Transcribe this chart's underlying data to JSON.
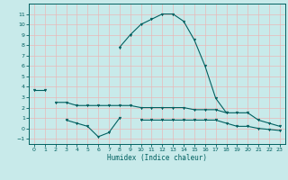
{
  "xlabel": "Humidex (Indice chaleur)",
  "x": [
    0,
    1,
    2,
    3,
    4,
    5,
    6,
    7,
    8,
    9,
    10,
    11,
    12,
    13,
    14,
    15,
    16,
    17,
    18,
    19,
    20,
    21,
    22,
    23
  ],
  "line1": [
    3.7,
    3.7,
    null,
    null,
    null,
    null,
    null,
    null,
    7.8,
    9.0,
    10.0,
    10.5,
    11.0,
    11.0,
    10.3,
    8.5,
    6.0,
    2.9,
    1.5,
    null,
    null,
    null,
    null,
    null
  ],
  "line2": [
    null,
    null,
    2.5,
    2.5,
    2.2,
    2.2,
    2.2,
    2.2,
    2.2,
    2.2,
    2.0,
    2.0,
    2.0,
    2.0,
    2.0,
    1.8,
    1.8,
    1.8,
    1.5,
    1.5,
    1.5,
    0.8,
    0.5,
    0.2
  ],
  "line3": [
    null,
    null,
    null,
    0.8,
    0.5,
    0.2,
    -0.8,
    -0.4,
    1.0,
    null,
    null,
    null,
    null,
    null,
    null,
    null,
    null,
    null,
    null,
    null,
    null,
    null,
    null,
    null
  ],
  "line4": [
    null,
    null,
    null,
    null,
    null,
    null,
    null,
    null,
    null,
    null,
    0.8,
    0.8,
    0.8,
    0.8,
    0.8,
    0.8,
    0.8,
    0.8,
    0.5,
    0.2,
    0.2,
    0.0,
    -0.1,
    -0.2
  ],
  "line_color": "#006060",
  "bg_color": "#c8eaea",
  "grid_color": "#e8b8b8",
  "ylim": [
    -1.5,
    12
  ],
  "xlim": [
    -0.5,
    23.5
  ],
  "yticks": [
    -1,
    0,
    1,
    2,
    3,
    4,
    5,
    6,
    7,
    8,
    9,
    10,
    11
  ],
  "xticks": [
    0,
    1,
    2,
    3,
    4,
    5,
    6,
    7,
    8,
    9,
    10,
    11,
    12,
    13,
    14,
    15,
    16,
    17,
    18,
    19,
    20,
    21,
    22,
    23
  ]
}
